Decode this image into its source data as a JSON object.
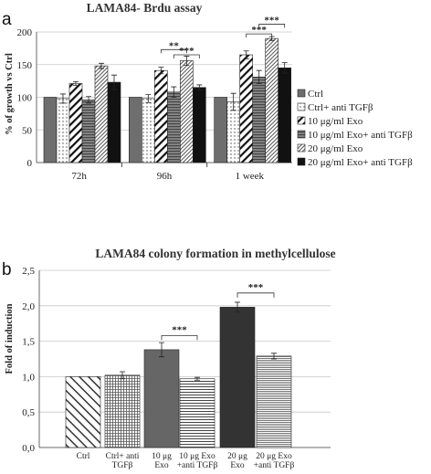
{
  "panels": {
    "a": "a",
    "b": "b"
  },
  "chart_data": [
    {
      "type": "bar",
      "title": "LAMA84- Brdu assay",
      "ylabel": "% of growth vs Ctrl",
      "xlabel": "",
      "ylim": [
        0,
        200
      ],
      "yticks": [
        0,
        50,
        100,
        150,
        200
      ],
      "categories": [
        "72h",
        "96h",
        "1 week"
      ],
      "legend_position": "right",
      "grid": true,
      "series": [
        {
          "name": "Ctrl",
          "values": [
            100,
            100,
            100
          ],
          "errors": [
            0,
            0,
            0
          ],
          "pattern": "solid-gray",
          "color": "#6e6e6e"
        },
        {
          "name": "Ctrl+ anti TGFβ",
          "values": [
            98,
            98,
            93
          ],
          "errors": [
            7,
            6,
            13
          ],
          "pattern": "dots",
          "color": "#ffffff"
        },
        {
          "name": "10 μg/ml Exo",
          "values": [
            121,
            141,
            165
          ],
          "errors": [
            3,
            5,
            6
          ],
          "pattern": "wide-diagonal",
          "color": "#ffffff"
        },
        {
          "name": "10 μg/ml Exo+ anti TGFβ",
          "values": [
            96,
            108,
            131
          ],
          "errors": [
            5,
            8,
            10
          ],
          "pattern": "horizontal-lines",
          "color": "#777777"
        },
        {
          "name": "20 μg/ml Exo",
          "values": [
            148,
            156,
            190
          ],
          "errors": [
            4,
            7,
            3
          ],
          "pattern": "dense-diagonal",
          "color": "#ffffff"
        },
        {
          "name": "20 μg/ml Exo+ anti TGFβ",
          "values": [
            123,
            115,
            145
          ],
          "errors": [
            11,
            4,
            8
          ],
          "pattern": "solid-black",
          "color": "#111111"
        }
      ],
      "annotations": [
        {
          "text": "**",
          "category": 1,
          "from_series": 2,
          "to_series": 4,
          "at": 173
        },
        {
          "text": "***",
          "category": 1,
          "from_series": 3,
          "to_series": 5,
          "at": 165
        },
        {
          "text": "***",
          "category": 2,
          "from_series": 2,
          "to_series": 4,
          "at": 197
        },
        {
          "text": "***",
          "category": 2,
          "from_series": 3,
          "to_series": 5,
          "at": 212
        }
      ]
    },
    {
      "type": "bar",
      "title": "LAMA84 colony formation in methylcellulose",
      "ylabel": "Fold of induction",
      "xlabel": "",
      "ylim": [
        0,
        2.5
      ],
      "yticks": [
        "0,0",
        "0,5",
        "1,0",
        "1,5",
        "2,0",
        "2,5"
      ],
      "ytick_values": [
        0,
        0.5,
        1.0,
        1.5,
        2.0,
        2.5
      ],
      "grid": true,
      "categories": [
        [
          "Ctrl"
        ],
        [
          "Ctrl+ anti",
          "TGFβ"
        ],
        [
          "10 μg",
          "Exo"
        ],
        [
          "10 μg Exo",
          "+anti TGFβ"
        ],
        [
          "20 μg",
          "Exo"
        ],
        [
          "20 μg Exo",
          "+anti TGFβ"
        ]
      ],
      "series": [
        {
          "name": "",
          "values": [
            1.0,
            1.02,
            1.38,
            0.97,
            1.98,
            1.29
          ],
          "errors": [
            0,
            0.05,
            0.1,
            0.02,
            0.07,
            0.04
          ]
        }
      ],
      "bar_patterns": [
        "diagonal-back",
        "grid",
        "solid-gray",
        "horizontal-lines",
        "solid-dark",
        "horizontal-lines-fine"
      ],
      "bar_colors": [
        "#ffffff",
        "#ffffff",
        "#666666",
        "#ffffff",
        "#333333",
        "#ffffff"
      ],
      "annotations": [
        {
          "text": "***",
          "from": 2,
          "to": 3,
          "at": 1.58
        },
        {
          "text": "***",
          "from": 4,
          "to": 5,
          "at": 2.18
        }
      ]
    }
  ]
}
